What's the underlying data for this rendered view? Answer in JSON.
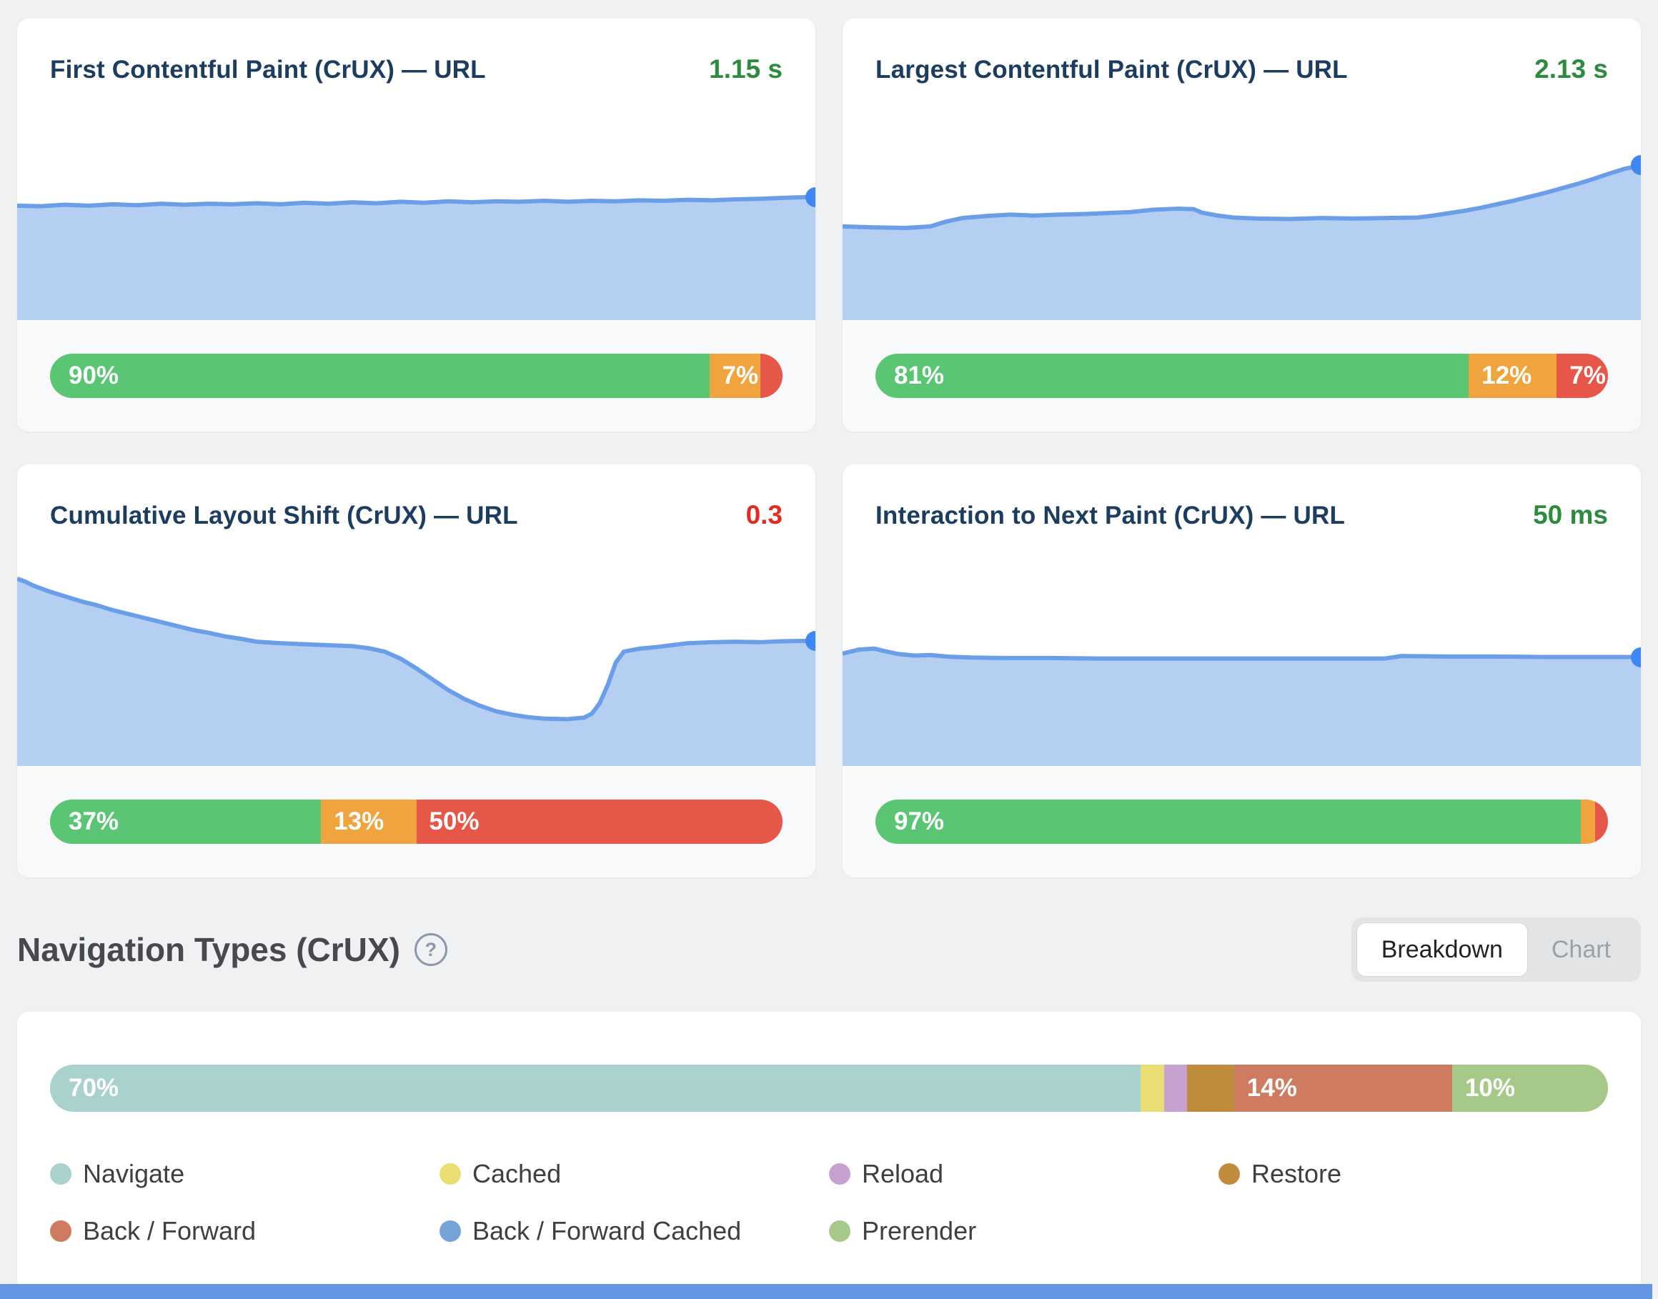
{
  "colors": {
    "good": "#5ac573",
    "needs_improvement": "#efa43d",
    "poor": "#e65749",
    "value_good": "#2d8b3f",
    "value_poor": "#e02d20",
    "area_fill": "#b5cff2",
    "area_line": "#6b9ee9",
    "area_dot": "#3d88f4",
    "navigate": "#a9d2cf",
    "cached": "#e8de74",
    "reload": "#c8a1d3",
    "restore": "#bf8b3d",
    "back_forward": "#ce7b61",
    "back_forward_cached": "#74a3d6",
    "prerender": "#a6c989"
  },
  "metrics": [
    {
      "title": "First Contentful Paint (CrUX) — URL",
      "value": "1.15 s",
      "value_color": "#2d8b3f",
      "segments": [
        {
          "name": "good",
          "label": "90%",
          "pct": 90,
          "color": "#5ac573"
        },
        {
          "name": "needs-improvement",
          "label": "7%",
          "pct": 7,
          "color": "#efa43d"
        },
        {
          "name": "poor",
          "label": "",
          "pct": 3,
          "color": "#e65749"
        }
      ],
      "trend_points": [
        [
          0,
          16.8
        ],
        [
          3,
          16.9
        ],
        [
          6,
          16.6
        ],
        [
          9,
          16.8
        ],
        [
          12,
          16.5
        ],
        [
          15,
          16.7
        ],
        [
          18,
          16.4
        ],
        [
          21,
          16.6
        ],
        [
          24,
          16.4
        ],
        [
          27,
          16.5
        ],
        [
          30,
          16.3
        ],
        [
          33,
          16.5
        ],
        [
          36,
          16.2
        ],
        [
          39,
          16.4
        ],
        [
          42,
          16.1
        ],
        [
          45,
          16.3
        ],
        [
          48,
          16.0
        ],
        [
          51,
          16.2
        ],
        [
          54,
          15.9
        ],
        [
          57,
          16.1
        ],
        [
          60,
          15.9
        ],
        [
          63,
          16.0
        ],
        [
          66,
          15.8
        ],
        [
          69,
          16.0
        ],
        [
          72,
          15.8
        ],
        [
          75,
          15.9
        ],
        [
          78,
          15.7
        ],
        [
          81,
          15.8
        ],
        [
          84,
          15.6
        ],
        [
          87,
          15.7
        ],
        [
          90,
          15.5
        ],
        [
          93,
          15.4
        ],
        [
          96,
          15.2
        ],
        [
          100,
          15.0
        ]
      ]
    },
    {
      "title": "Largest Contentful Paint (CrUX) — URL",
      "value": "2.13 s",
      "value_color": "#2d8b3f",
      "segments": [
        {
          "name": "good",
          "label": "81%",
          "pct": 81,
          "color": "#5ac573"
        },
        {
          "name": "needs-improvement",
          "label": "12%",
          "pct": 12,
          "color": "#efa43d"
        },
        {
          "name": "poor",
          "label": "7%",
          "pct": 7,
          "color": "#e65749"
        }
      ],
      "trend_points": [
        [
          0,
          21.0
        ],
        [
          4,
          21.2
        ],
        [
          8,
          21.3
        ],
        [
          11,
          21.0
        ],
        [
          13,
          20.0
        ],
        [
          15,
          19.3
        ],
        [
          18,
          18.9
        ],
        [
          21,
          18.6
        ],
        [
          24,
          18.8
        ],
        [
          27,
          18.6
        ],
        [
          30,
          18.5
        ],
        [
          33,
          18.3
        ],
        [
          36,
          18.1
        ],
        [
          39,
          17.6
        ],
        [
          42,
          17.4
        ],
        [
          44,
          17.5
        ],
        [
          45,
          18.2
        ],
        [
          47,
          18.8
        ],
        [
          49,
          19.2
        ],
        [
          52,
          19.4
        ],
        [
          56,
          19.5
        ],
        [
          60,
          19.3
        ],
        [
          64,
          19.4
        ],
        [
          68,
          19.3
        ],
        [
          72,
          19.2
        ],
        [
          74,
          18.8
        ],
        [
          76,
          18.3
        ],
        [
          78,
          17.8
        ],
        [
          80,
          17.2
        ],
        [
          82,
          16.5
        ],
        [
          84,
          15.8
        ],
        [
          86,
          15.0
        ],
        [
          88,
          14.2
        ],
        [
          90,
          13.3
        ],
        [
          92,
          12.4
        ],
        [
          94,
          11.4
        ],
        [
          96,
          10.3
        ],
        [
          98,
          9.3
        ],
        [
          100,
          8.6
        ]
      ]
    },
    {
      "title": "Cumulative Layout Shift (CrUX) — URL",
      "value": "0.3",
      "value_color": "#e02d20",
      "segments": [
        {
          "name": "good",
          "label": "37%",
          "pct": 37,
          "color": "#5ac573"
        },
        {
          "name": "needs-improvement",
          "label": "13%",
          "pct": 13,
          "color": "#efa43d"
        },
        {
          "name": "poor",
          "label": "50%",
          "pct": 50,
          "color": "#e65749"
        }
      ],
      "trend_points": [
        [
          0,
          2.0
        ],
        [
          1,
          2.6
        ],
        [
          2,
          3.4
        ],
        [
          4,
          4.6
        ],
        [
          6,
          5.6
        ],
        [
          8,
          6.6
        ],
        [
          10,
          7.4
        ],
        [
          12,
          8.4
        ],
        [
          14,
          9.2
        ],
        [
          16,
          10.0
        ],
        [
          18,
          10.8
        ],
        [
          20,
          11.6
        ],
        [
          22,
          12.4
        ],
        [
          24,
          13.0
        ],
        [
          26,
          13.7
        ],
        [
          28,
          14.2
        ],
        [
          30,
          14.8
        ],
        [
          33,
          15.1
        ],
        [
          36,
          15.3
        ],
        [
          39,
          15.5
        ],
        [
          42,
          15.7
        ],
        [
          44,
          16.1
        ],
        [
          46,
          16.8
        ],
        [
          48,
          18.2
        ],
        [
          50,
          20.2
        ],
        [
          52,
          22.4
        ],
        [
          54,
          24.6
        ],
        [
          56,
          26.4
        ],
        [
          58,
          27.8
        ],
        [
          60,
          28.9
        ],
        [
          62,
          29.6
        ],
        [
          64,
          30.1
        ],
        [
          66,
          30.4
        ],
        [
          69,
          30.5
        ],
        [
          71,
          30.2
        ],
        [
          72,
          29.4
        ],
        [
          73,
          27.2
        ],
        [
          74,
          23.5
        ],
        [
          75,
          19.0
        ],
        [
          76,
          16.8
        ],
        [
          78,
          16.2
        ],
        [
          80,
          15.9
        ],
        [
          82,
          15.5
        ],
        [
          84,
          15.1
        ],
        [
          87,
          14.9
        ],
        [
          90,
          14.8
        ],
        [
          93,
          14.9
        ],
        [
          96,
          14.7
        ],
        [
          100,
          14.6
        ]
      ]
    },
    {
      "title": "Interaction to Next Paint (CrUX) — URL",
      "value": "50 ms",
      "value_color": "#2d8b3f",
      "segments": [
        {
          "name": "good",
          "label": "97%",
          "pct": 97,
          "color": "#5ac573"
        },
        {
          "name": "needs-improvement",
          "label": "",
          "pct": 2,
          "color": "#efa43d"
        },
        {
          "name": "poor",
          "label": "",
          "pct": 1,
          "color": "#e65749"
        }
      ],
      "trend_points": [
        [
          0,
          17.2
        ],
        [
          2,
          16.4
        ],
        [
          4,
          16.2
        ],
        [
          5,
          16.6
        ],
        [
          7,
          17.3
        ],
        [
          9,
          17.6
        ],
        [
          11,
          17.5
        ],
        [
          13,
          17.8
        ],
        [
          16,
          18.0
        ],
        [
          20,
          18.1
        ],
        [
          26,
          18.1
        ],
        [
          32,
          18.2
        ],
        [
          40,
          18.2
        ],
        [
          48,
          18.2
        ],
        [
          56,
          18.2
        ],
        [
          62,
          18.2
        ],
        [
          68,
          18.2
        ],
        [
          70,
          17.7
        ],
        [
          76,
          17.8
        ],
        [
          82,
          17.8
        ],
        [
          88,
          17.9
        ],
        [
          94,
          17.9
        ],
        [
          100,
          17.9
        ]
      ]
    }
  ],
  "navigation": {
    "title": "Navigation Types (CrUX)",
    "help_icon": "?",
    "toggle": {
      "breakdown_label": "Breakdown",
      "chart_label": "Chart",
      "active": "Breakdown"
    },
    "segments": [
      {
        "name": "navigate",
        "label": "70%",
        "pct": 70,
        "color": "#a9d2cf"
      },
      {
        "name": "cached",
        "label": "",
        "pct": 1.5,
        "color": "#e8de74"
      },
      {
        "name": "reload",
        "label": "",
        "pct": 1.5,
        "color": "#c8a1d3"
      },
      {
        "name": "restore",
        "label": "",
        "pct": 3,
        "color": "#bf8b3d"
      },
      {
        "name": "back-forward",
        "label": "14%",
        "pct": 14,
        "color": "#ce7b61"
      },
      {
        "name": "prerender",
        "label": "10%",
        "pct": 10,
        "color": "#a6c989"
      }
    ],
    "legend": [
      {
        "name": "navigate",
        "label": "Navigate",
        "color": "#a9d2cf"
      },
      {
        "name": "cached",
        "label": "Cached",
        "color": "#e8de74"
      },
      {
        "name": "reload",
        "label": "Reload",
        "color": "#c8a1d3"
      },
      {
        "name": "restore",
        "label": "Restore",
        "color": "#bf8b3d"
      },
      {
        "name": "back-forward",
        "label": "Back / Forward",
        "color": "#ce7b61"
      },
      {
        "name": "back-forward-cached",
        "label": "Back / Forward Cached",
        "color": "#74a3d6"
      },
      {
        "name": "prerender",
        "label": "Prerender",
        "color": "#a6c989"
      }
    ]
  },
  "chart_data": [
    {
      "type": "area",
      "title": "First Contentful Paint (CrUX) — URL",
      "current_value": "1.15 s",
      "distribution_pct": {
        "good": 90,
        "needs_improvement": 7,
        "poor": 3
      },
      "note": "flat sparkline trend, latest point marker at right edge"
    },
    {
      "type": "area",
      "title": "Largest Contentful Paint (CrUX) — URL",
      "current_value": "2.13 s",
      "distribution_pct": {
        "good": 81,
        "needs_improvement": 12,
        "poor": 7
      },
      "note": "mostly flat trend rising toward right edge"
    },
    {
      "type": "area",
      "title": "Cumulative Layout Shift (CrUX) — URL",
      "current_value": "0.3",
      "distribution_pct": {
        "good": 37,
        "needs_improvement": 13,
        "poor": 50
      },
      "note": "staircase decline, deep dip in middle, recovery at right"
    },
    {
      "type": "area",
      "title": "Interaction to Next Paint (CrUX) — URL",
      "current_value": "50 ms",
      "distribution_pct": {
        "good": 97,
        "needs_improvement": 2,
        "poor": 1
      },
      "note": "flat trend"
    },
    {
      "type": "bar",
      "title": "Navigation Types (CrUX)",
      "categories": [
        "Navigate",
        "Cached",
        "Reload",
        "Restore",
        "Back / Forward",
        "Back / Forward Cached",
        "Prerender"
      ],
      "values_pct": [
        70,
        1.5,
        1.5,
        3,
        14,
        0,
        10
      ],
      "legend_position": "below",
      "labels_shown": [
        "70%",
        "14%",
        "10%"
      ]
    }
  ]
}
